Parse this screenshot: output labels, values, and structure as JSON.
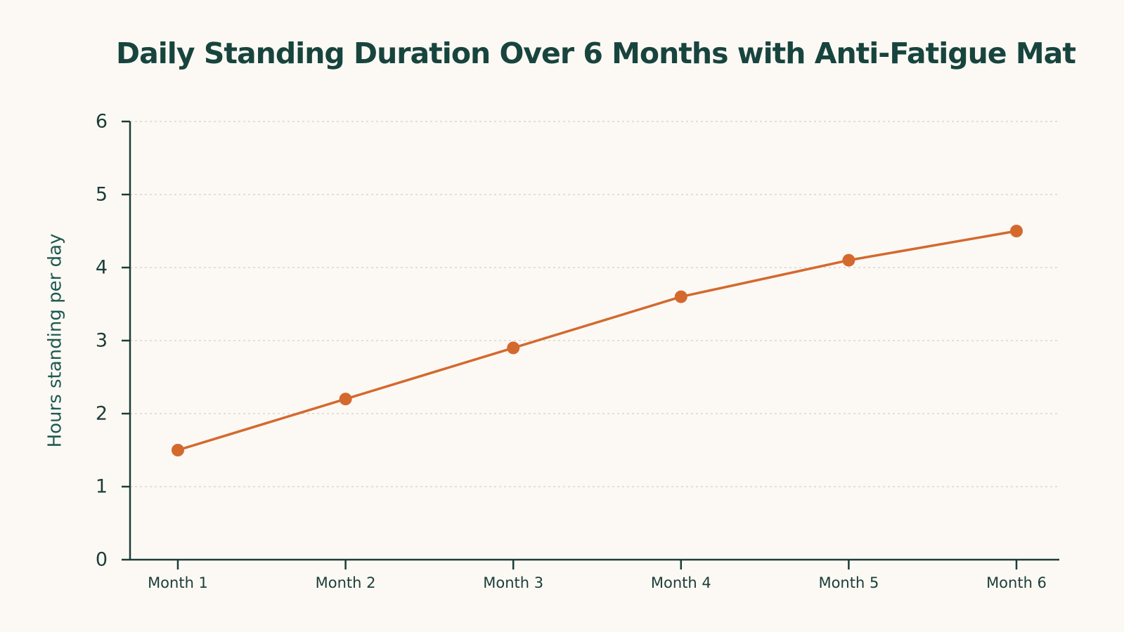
{
  "chart_data": {
    "type": "line",
    "title": "Daily Standing Duration Over 6 Months with Anti-Fatigue Mat",
    "xlabel": "",
    "ylabel": "Hours standing per day",
    "categories": [
      "Month 1",
      "Month 2",
      "Month 3",
      "Month 4",
      "Month 5",
      "Month 6"
    ],
    "series": [
      {
        "values": [
          1.5,
          2.2,
          2.9,
          3.6,
          4.1,
          4.5
        ]
      }
    ],
    "ylim": [
      0,
      6
    ],
    "yticks": [
      "0",
      "1",
      "2",
      "3",
      "4",
      "5",
      "6"
    ],
    "grid": true,
    "legend": "none",
    "colors": {
      "line": "#d4692e",
      "axis": "#1b3d39",
      "grid": "#d9d6d0",
      "title": "#18443e",
      "background": "#fcf9f4"
    }
  }
}
